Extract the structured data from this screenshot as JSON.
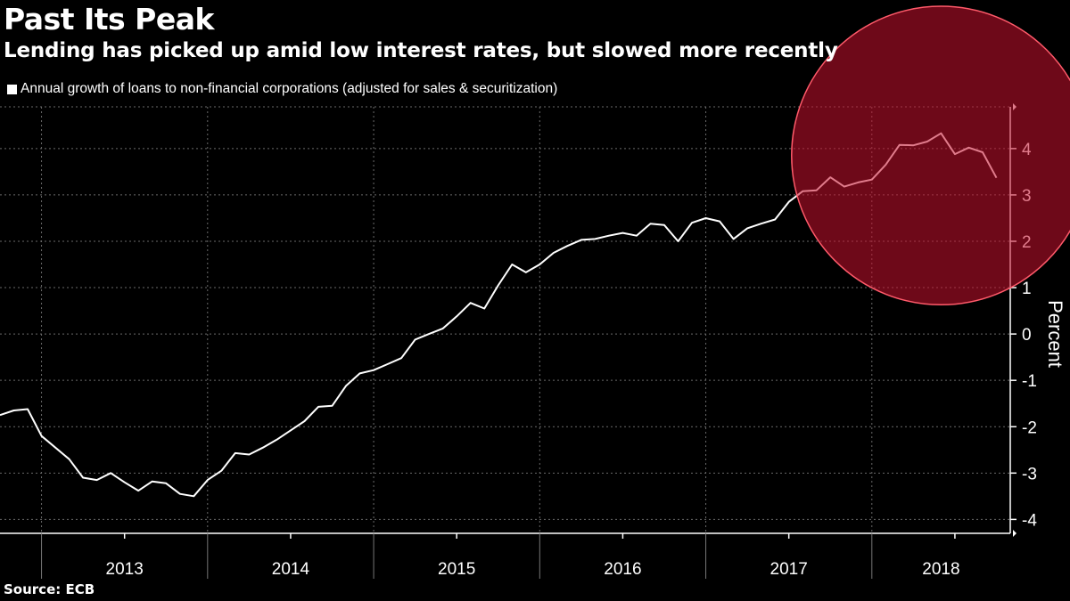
{
  "title": "Past Its Peak",
  "subtitle": "Lending has picked up amid low interest rates, but slowed more recently",
  "source": "Source:  ECB",
  "colors": {
    "background": "#000000",
    "line": "#ffffff",
    "highlight": "#c8102e",
    "grid": "#666666"
  },
  "chart_data": {
    "type": "line",
    "title": "Past Its Peak",
    "subtitle": "Lending has picked up amid low interest rates, but slowed more recently",
    "xlabel": "",
    "ylabel": "Percent",
    "ylim": [
      -4.3,
      4.9
    ],
    "yticks": [
      -4,
      -3,
      -2,
      -1,
      0,
      1,
      2,
      3,
      4
    ],
    "ytick_labels": [
      "-4",
      "-3",
      "-2",
      "-1",
      "0",
      "1",
      "2",
      "3",
      "4"
    ],
    "grid": true,
    "x_start": "2012-10",
    "x_end": "2018-11",
    "year_labels": [
      "2013",
      "2014",
      "2015",
      "2016",
      "2017",
      "2018"
    ],
    "series": [
      {
        "name": "Annual growth of loans to non-financial corporations (adjusted for sales & securitization)",
        "dates": [
          "2012-10",
          "2012-11",
          "2012-12",
          "2013-01",
          "2013-02",
          "2013-03",
          "2013-04",
          "2013-05",
          "2013-06",
          "2013-07",
          "2013-08",
          "2013-09",
          "2013-10",
          "2013-11",
          "2013-12",
          "2014-01",
          "2014-02",
          "2014-03",
          "2014-04",
          "2014-05",
          "2014-06",
          "2014-07",
          "2014-08",
          "2014-09",
          "2014-10",
          "2014-11",
          "2014-12",
          "2015-01",
          "2015-02",
          "2015-03",
          "2015-04",
          "2015-05",
          "2015-06",
          "2015-07",
          "2015-08",
          "2015-09",
          "2015-10",
          "2015-11",
          "2015-12",
          "2016-01",
          "2016-02",
          "2016-03",
          "2016-04",
          "2016-05",
          "2016-06",
          "2016-07",
          "2016-08",
          "2016-09",
          "2016-10",
          "2016-11",
          "2016-12",
          "2017-01",
          "2017-02",
          "2017-03",
          "2017-04",
          "2017-05",
          "2017-06",
          "2017-07",
          "2017-08",
          "2017-09",
          "2017-10",
          "2017-11",
          "2017-12",
          "2018-01",
          "2018-02",
          "2018-03",
          "2018-04",
          "2018-05",
          "2018-06",
          "2018-07",
          "2018-08",
          "2018-09",
          "2018-10"
        ],
        "values": [
          -1.75,
          -1.65,
          -1.62,
          -2.2,
          -2.45,
          -2.7,
          -3.1,
          -3.15,
          -3.0,
          -3.2,
          -3.38,
          -3.18,
          -3.22,
          -3.45,
          -3.5,
          -3.15,
          -2.95,
          -2.57,
          -2.6,
          -2.45,
          -2.28,
          -2.08,
          -1.88,
          -1.57,
          -1.55,
          -1.12,
          -0.85,
          -0.78,
          -0.65,
          -0.52,
          -0.12,
          0.0,
          0.12,
          0.38,
          0.67,
          0.55,
          1.05,
          1.5,
          1.33,
          1.5,
          1.75,
          1.9,
          2.03,
          2.05,
          2.12,
          2.18,
          2.12,
          2.38,
          2.35,
          2.0,
          2.4,
          2.5,
          2.43,
          2.05,
          2.28,
          2.38,
          2.47,
          2.85,
          3.08,
          3.1,
          3.38,
          3.18,
          3.27,
          3.33,
          3.65,
          4.08,
          4.07,
          4.15,
          4.33,
          3.88,
          4.02,
          3.92,
          3.37
        ]
      }
    ],
    "annotations": [
      {
        "type": "circle",
        "label": "highlight of recent slowdown",
        "center_date": "2018-06",
        "center_value": 3.85,
        "radius_years": 0.9
      }
    ]
  }
}
